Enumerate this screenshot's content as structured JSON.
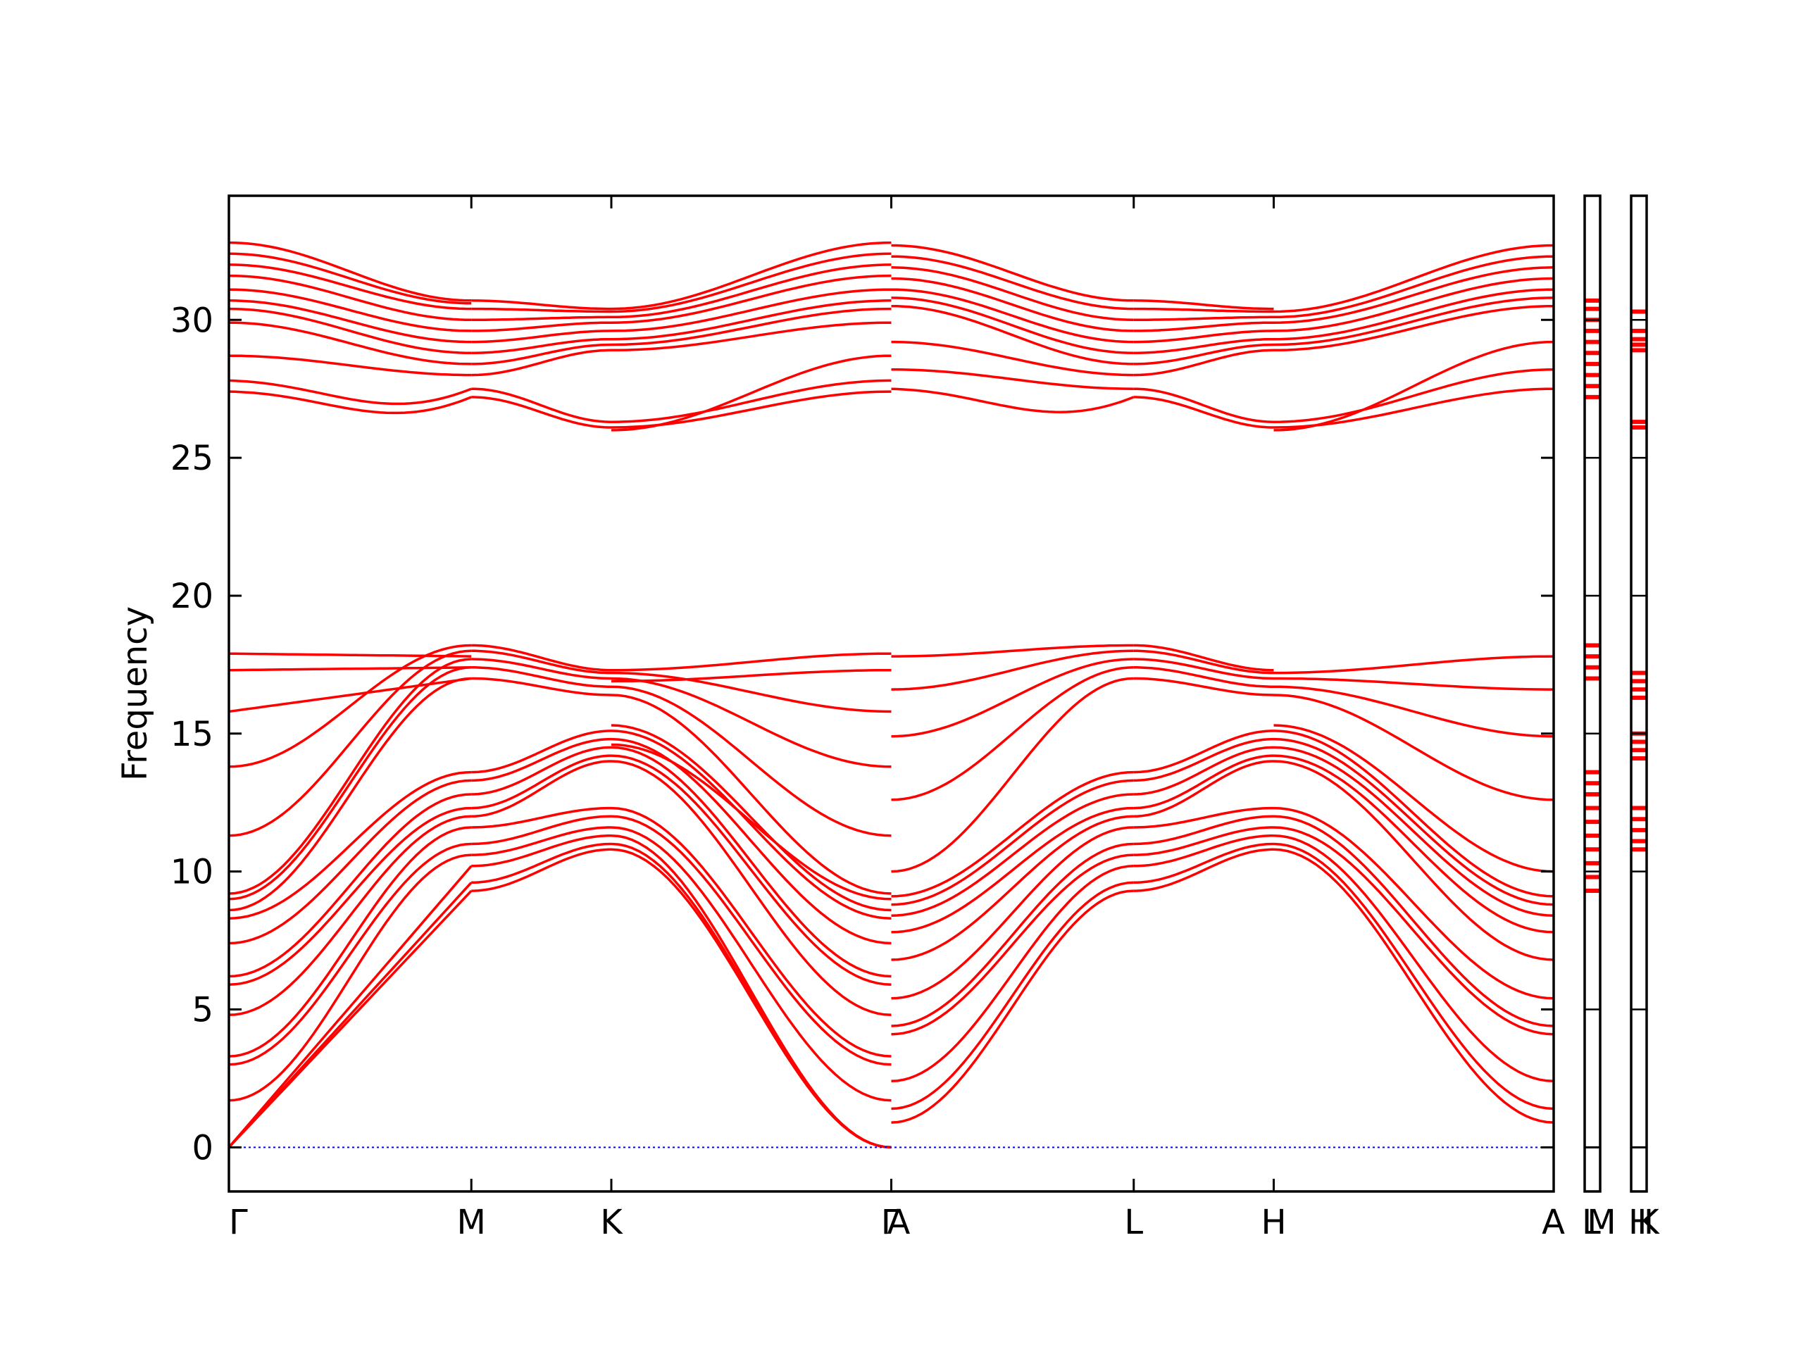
{
  "chart_data": {
    "type": "line",
    "ylabel": "Frequency",
    "xlabel": "",
    "title": "",
    "ylim": [
      -1.6,
      34.5
    ],
    "yticks": [
      0,
      5,
      10,
      15,
      20,
      25,
      30
    ],
    "grid": false,
    "legend": "none",
    "colors": {
      "bands": "#ff0000",
      "zero_line": "#0000ff",
      "axes": "#000000"
    },
    "segments": [
      {
        "from": "Γ",
        "to": "M",
        "length": 0.5
      },
      {
        "from": "M",
        "to": "K",
        "length": 0.2887
      },
      {
        "from": "K",
        "to": "Γ",
        "length": 0.5774
      },
      {
        "from": "A",
        "to": "L",
        "length": 0.5
      },
      {
        "from": "L",
        "to": "H",
        "length": 0.2887
      },
      {
        "from": "H",
        "to": "A",
        "length": 0.5774
      }
    ],
    "main_panel_labels": [
      "Γ",
      "M",
      "K",
      "Γ",
      "A",
      "L",
      "H",
      "A"
    ],
    "side_panels": [
      {
        "from": "L",
        "to": "M",
        "labels": [
          "L",
          "M"
        ],
        "band_values": [
          27.2,
          27.6,
          28.0,
          28.4,
          28.8,
          29.2,
          29.6,
          30.0,
          30.4,
          30.7,
          9.3,
          9.8,
          10.3,
          10.8,
          11.3,
          11.8,
          12.3,
          12.8,
          13.2,
          13.6,
          17.0,
          17.4,
          17.8,
          18.2
        ]
      },
      {
        "from": "H",
        "to": "K",
        "labels": [
          "H",
          "K"
        ],
        "band_values": [
          26.1,
          26.3,
          28.9,
          29.1,
          29.3,
          29.6,
          30.3,
          10.8,
          11.1,
          11.5,
          11.9,
          12.3,
          14.1,
          14.4,
          14.7,
          15.0,
          16.3,
          16.6,
          16.9,
          17.2
        ]
      }
    ],
    "series": [
      {
        "segment": 0,
        "start": 0.0,
        "end": 9.3,
        "shape": "linear"
      },
      {
        "segment": 0,
        "start": 0.0,
        "end": 9.6,
        "shape": "linear"
      },
      {
        "segment": 0,
        "start": 0.0,
        "end": 10.2,
        "shape": "linear"
      },
      {
        "segment": 0,
        "start": 1.7,
        "end": 10.6,
        "shape": "cos"
      },
      {
        "segment": 0,
        "start": 3.0,
        "end": 11.0,
        "shape": "cos"
      },
      {
        "segment": 0,
        "start": 3.3,
        "end": 11.6,
        "shape": "cos"
      },
      {
        "segment": 0,
        "start": 4.8,
        "end": 12.0,
        "shape": "cos"
      },
      {
        "segment": 0,
        "start": 5.9,
        "end": 12.3,
        "shape": "cos"
      },
      {
        "segment": 0,
        "start": 6.2,
        "end": 12.8,
        "shape": "cos"
      },
      {
        "segment": 0,
        "start": 7.4,
        "end": 13.3,
        "shape": "cos"
      },
      {
        "segment": 0,
        "start": 8.3,
        "end": 13.6,
        "shape": "cos"
      },
      {
        "segment": 0,
        "start": 8.6,
        "end": 17.0,
        "shape": "cos"
      },
      {
        "segment": 0,
        "start": 9.0,
        "end": 17.4,
        "shape": "cos"
      },
      {
        "segment": 0,
        "start": 9.2,
        "end": 17.7,
        "shape": "cos"
      },
      {
        "segment": 0,
        "start": 11.3,
        "end": 18.0,
        "shape": "cos"
      },
      {
        "segment": 0,
        "start": 13.8,
        "end": 18.2,
        "shape": "cos"
      },
      {
        "segment": 0,
        "start": 15.8,
        "end": 17.0,
        "shape": "flat"
      },
      {
        "segment": 0,
        "start": 17.3,
        "end": 17.4,
        "shape": "flat"
      },
      {
        "segment": 0,
        "start": 17.9,
        "end": 17.8,
        "shape": "flat"
      },
      {
        "segment": 0,
        "start": 27.4,
        "end": 27.2,
        "shape": "dip"
      },
      {
        "segment": 0,
        "start": 27.8,
        "end": 27.5,
        "shape": "dip"
      },
      {
        "segment": 0,
        "start": 28.7,
        "end": 28.0,
        "shape": "cos"
      },
      {
        "segment": 0,
        "start": 29.9,
        "end": 28.4,
        "shape": "cos"
      },
      {
        "segment": 0,
        "start": 30.4,
        "end": 28.8,
        "shape": "cos"
      },
      {
        "segment": 0,
        "start": 30.7,
        "end": 29.2,
        "shape": "cos"
      },
      {
        "segment": 0,
        "start": 31.1,
        "end": 29.6,
        "shape": "cos"
      },
      {
        "segment": 0,
        "start": 31.6,
        "end": 30.0,
        "shape": "cos"
      },
      {
        "segment": 0,
        "start": 32.0,
        "end": 30.4,
        "shape": "cos"
      },
      {
        "segment": 0,
        "start": 32.4,
        "end": 30.6,
        "shape": "cos"
      },
      {
        "segment": 0,
        "start": 32.8,
        "end": 30.7,
        "shape": "cos"
      },
      {
        "segment": 1,
        "start": 9.3,
        "end": 10.8,
        "shape": "cos"
      },
      {
        "segment": 1,
        "start": 9.6,
        "end": 11.0,
        "shape": "cos"
      },
      {
        "segment": 1,
        "start": 10.2,
        "end": 11.3,
        "shape": "cos"
      },
      {
        "segment": 1,
        "start": 10.6,
        "end": 11.6,
        "shape": "cos"
      },
      {
        "segment": 1,
        "start": 11.0,
        "end": 12.0,
        "shape": "cos"
      },
      {
        "segment": 1,
        "start": 11.6,
        "end": 12.3,
        "shape": "cos"
      },
      {
        "segment": 1,
        "start": 12.0,
        "end": 14.0,
        "shape": "cos"
      },
      {
        "segment": 1,
        "start": 12.3,
        "end": 14.2,
        "shape": "cos"
      },
      {
        "segment": 1,
        "start": 12.8,
        "end": 14.5,
        "shape": "cos"
      },
      {
        "segment": 1,
        "start": 13.3,
        "end": 14.8,
        "shape": "cos"
      },
      {
        "segment": 1,
        "start": 13.6,
        "end": 15.1,
        "shape": "cos"
      },
      {
        "segment": 1,
        "start": 17.0,
        "end": 16.4,
        "shape": "cos"
      },
      {
        "segment": 1,
        "start": 17.4,
        "end": 16.7,
        "shape": "cos"
      },
      {
        "segment": 1,
        "start": 17.7,
        "end": 17.0,
        "shape": "cos"
      },
      {
        "segment": 1,
        "start": 18.0,
        "end": 17.2,
        "shape": "cos"
      },
      {
        "segment": 1,
        "start": 18.2,
        "end": 17.3,
        "shape": "cos"
      },
      {
        "segment": 1,
        "start": 27.2,
        "end": 26.1,
        "shape": "cos"
      },
      {
        "segment": 1,
        "start": 27.5,
        "end": 26.3,
        "shape": "cos"
      },
      {
        "segment": 1,
        "start": 28.0,
        "end": 28.9,
        "shape": "cos"
      },
      {
        "segment": 1,
        "start": 28.4,
        "end": 29.1,
        "shape": "cos"
      },
      {
        "segment": 1,
        "start": 28.8,
        "end": 29.3,
        "shape": "cos"
      },
      {
        "segment": 1,
        "start": 29.2,
        "end": 29.6,
        "shape": "cos"
      },
      {
        "segment": 1,
        "start": 29.6,
        "end": 29.9,
        "shape": "cos"
      },
      {
        "segment": 1,
        "start": 30.0,
        "end": 30.1,
        "shape": "cos"
      },
      {
        "segment": 1,
        "start": 30.4,
        "end": 30.3,
        "shape": "cos"
      },
      {
        "segment": 1,
        "start": 30.7,
        "end": 30.4,
        "shape": "cos"
      },
      {
        "segment": 2,
        "start": 10.8,
        "end": 0.0,
        "shape": "cos"
      },
      {
        "segment": 2,
        "start": 11.0,
        "end": 0.0,
        "shape": "cos"
      },
      {
        "segment": 2,
        "start": 11.3,
        "end": 0.0,
        "shape": "cos"
      },
      {
        "segment": 2,
        "start": 11.6,
        "end": 1.7,
        "shape": "cos"
      },
      {
        "segment": 2,
        "start": 12.0,
        "end": 3.0,
        "shape": "cos"
      },
      {
        "segment": 2,
        "start": 12.3,
        "end": 3.3,
        "shape": "cos"
      },
      {
        "segment": 2,
        "start": 14.0,
        "end": 4.8,
        "shape": "cos"
      },
      {
        "segment": 2,
        "start": 14.2,
        "end": 5.9,
        "shape": "cos"
      },
      {
        "segment": 2,
        "start": 14.5,
        "end": 6.2,
        "shape": "cos"
      },
      {
        "segment": 2,
        "start": 14.8,
        "end": 7.4,
        "shape": "cos"
      },
      {
        "segment": 2,
        "start": 15.1,
        "end": 8.3,
        "shape": "cos"
      },
      {
        "segment": 2,
        "start": 15.3,
        "end": 8.6,
        "shape": "cos"
      },
      {
        "segment": 2,
        "start": 14.6,
        "end": 9.0,
        "shape": "cos"
      },
      {
        "segment": 2,
        "start": 16.4,
        "end": 9.2,
        "shape": "cos"
      },
      {
        "segment": 2,
        "start": 16.7,
        "end": 11.3,
        "shape": "cos"
      },
      {
        "segment": 2,
        "start": 17.0,
        "end": 13.8,
        "shape": "cos"
      },
      {
        "segment": 2,
        "start": 17.2,
        "end": 15.8,
        "shape": "cos"
      },
      {
        "segment": 2,
        "start": 16.9,
        "end": 17.3,
        "shape": "cos"
      },
      {
        "segment": 2,
        "start": 17.3,
        "end": 17.9,
        "shape": "cos"
      },
      {
        "segment": 2,
        "start": 26.1,
        "end": 27.4,
        "shape": "cos"
      },
      {
        "segment": 2,
        "start": 26.3,
        "end": 27.8,
        "shape": "cos"
      },
      {
        "segment": 2,
        "start": 26.0,
        "end": 28.7,
        "shape": "cos"
      },
      {
        "segment": 2,
        "start": 28.9,
        "end": 29.9,
        "shape": "cos"
      },
      {
        "segment": 2,
        "start": 29.1,
        "end": 30.4,
        "shape": "cos"
      },
      {
        "segment": 2,
        "start": 29.3,
        "end": 30.7,
        "shape": "cos"
      },
      {
        "segment": 2,
        "start": 29.6,
        "end": 31.1,
        "shape": "cos"
      },
      {
        "segment": 2,
        "start": 29.9,
        "end": 31.6,
        "shape": "cos"
      },
      {
        "segment": 2,
        "start": 30.1,
        "end": 32.0,
        "shape": "cos"
      },
      {
        "segment": 2,
        "start": 30.3,
        "end": 32.4,
        "shape": "cos"
      },
      {
        "segment": 2,
        "start": 30.4,
        "end": 32.8,
        "shape": "cos"
      },
      {
        "segment": 3,
        "start": 0.9,
        "end": 9.3,
        "shape": "cos"
      },
      {
        "segment": 3,
        "start": 1.4,
        "end": 9.6,
        "shape": "cos"
      },
      {
        "segment": 3,
        "start": 2.4,
        "end": 10.2,
        "shape": "cos"
      },
      {
        "segment": 3,
        "start": 4.1,
        "end": 10.6,
        "shape": "cos"
      },
      {
        "segment": 3,
        "start": 4.4,
        "end": 11.0,
        "shape": "cos"
      },
      {
        "segment": 3,
        "start": 5.4,
        "end": 11.6,
        "shape": "cos"
      },
      {
        "segment": 3,
        "start": 6.8,
        "end": 12.0,
        "shape": "cos"
      },
      {
        "segment": 3,
        "start": 7.8,
        "end": 12.3,
        "shape": "cos"
      },
      {
        "segment": 3,
        "start": 8.4,
        "end": 12.8,
        "shape": "cos"
      },
      {
        "segment": 3,
        "start": 8.8,
        "end": 13.3,
        "shape": "cos"
      },
      {
        "segment": 3,
        "start": 9.1,
        "end": 13.6,
        "shape": "cos"
      },
      {
        "segment": 3,
        "start": 10.0,
        "end": 17.0,
        "shape": "cos"
      },
      {
        "segment": 3,
        "start": 12.6,
        "end": 17.4,
        "shape": "cos"
      },
      {
        "segment": 3,
        "start": 14.9,
        "end": 17.7,
        "shape": "cos"
      },
      {
        "segment": 3,
        "start": 16.6,
        "end": 18.0,
        "shape": "cos"
      },
      {
        "segment": 3,
        "start": 17.8,
        "end": 18.2,
        "shape": "cos"
      },
      {
        "segment": 3,
        "start": 27.5,
        "end": 27.2,
        "shape": "dip"
      },
      {
        "segment": 3,
        "start": 28.2,
        "end": 27.5,
        "shape": "cos"
      },
      {
        "segment": 3,
        "start": 29.2,
        "end": 28.0,
        "shape": "cos"
      },
      {
        "segment": 3,
        "start": 30.5,
        "end": 28.4,
        "shape": "cos"
      },
      {
        "segment": 3,
        "start": 30.8,
        "end": 28.8,
        "shape": "cos"
      },
      {
        "segment": 3,
        "start": 31.1,
        "end": 29.2,
        "shape": "cos"
      },
      {
        "segment": 3,
        "start": 31.5,
        "end": 29.6,
        "shape": "cos"
      },
      {
        "segment": 3,
        "start": 31.9,
        "end": 30.0,
        "shape": "cos"
      },
      {
        "segment": 3,
        "start": 32.3,
        "end": 30.4,
        "shape": "cos"
      },
      {
        "segment": 3,
        "start": 32.7,
        "end": 30.7,
        "shape": "cos"
      },
      {
        "segment": 4,
        "start": 9.3,
        "end": 10.8,
        "shape": "cos"
      },
      {
        "segment": 4,
        "start": 9.6,
        "end": 11.0,
        "shape": "cos"
      },
      {
        "segment": 4,
        "start": 10.2,
        "end": 11.3,
        "shape": "cos"
      },
      {
        "segment": 4,
        "start": 10.6,
        "end": 11.6,
        "shape": "cos"
      },
      {
        "segment": 4,
        "start": 11.0,
        "end": 12.0,
        "shape": "cos"
      },
      {
        "segment": 4,
        "start": 11.6,
        "end": 12.3,
        "shape": "cos"
      },
      {
        "segment": 4,
        "start": 12.0,
        "end": 14.0,
        "shape": "cos"
      },
      {
        "segment": 4,
        "start": 12.3,
        "end": 14.2,
        "shape": "cos"
      },
      {
        "segment": 4,
        "start": 12.8,
        "end": 14.5,
        "shape": "cos"
      },
      {
        "segment": 4,
        "start": 13.3,
        "end": 14.8,
        "shape": "cos"
      },
      {
        "segment": 4,
        "start": 13.6,
        "end": 15.1,
        "shape": "cos"
      },
      {
        "segment": 4,
        "start": 17.0,
        "end": 16.4,
        "shape": "cos"
      },
      {
        "segment": 4,
        "start": 17.4,
        "end": 16.7,
        "shape": "cos"
      },
      {
        "segment": 4,
        "start": 17.7,
        "end": 17.0,
        "shape": "cos"
      },
      {
        "segment": 4,
        "start": 18.0,
        "end": 17.2,
        "shape": "cos"
      },
      {
        "segment": 4,
        "start": 18.2,
        "end": 17.3,
        "shape": "cos"
      },
      {
        "segment": 4,
        "start": 27.2,
        "end": 26.1,
        "shape": "cos"
      },
      {
        "segment": 4,
        "start": 27.5,
        "end": 26.3,
        "shape": "cos"
      },
      {
        "segment": 4,
        "start": 28.0,
        "end": 28.9,
        "shape": "cos"
      },
      {
        "segment": 4,
        "start": 28.4,
        "end": 29.1,
        "shape": "cos"
      },
      {
        "segment": 4,
        "start": 28.8,
        "end": 29.3,
        "shape": "cos"
      },
      {
        "segment": 4,
        "start": 29.2,
        "end": 29.6,
        "shape": "cos"
      },
      {
        "segment": 4,
        "start": 29.6,
        "end": 29.9,
        "shape": "cos"
      },
      {
        "segment": 4,
        "start": 30.0,
        "end": 30.1,
        "shape": "cos"
      },
      {
        "segment": 4,
        "start": 30.4,
        "end": 30.3,
        "shape": "cos"
      },
      {
        "segment": 4,
        "start": 30.7,
        "end": 30.4,
        "shape": "cos"
      },
      {
        "segment": 5,
        "start": 10.8,
        "end": 0.9,
        "shape": "cos"
      },
      {
        "segment": 5,
        "start": 11.0,
        "end": 1.4,
        "shape": "cos"
      },
      {
        "segment": 5,
        "start": 11.3,
        "end": 2.4,
        "shape": "cos"
      },
      {
        "segment": 5,
        "start": 11.6,
        "end": 4.1,
        "shape": "cos"
      },
      {
        "segment": 5,
        "start": 12.0,
        "end": 4.4,
        "shape": "cos"
      },
      {
        "segment": 5,
        "start": 12.3,
        "end": 5.4,
        "shape": "cos"
      },
      {
        "segment": 5,
        "start": 14.0,
        "end": 6.8,
        "shape": "cos"
      },
      {
        "segment": 5,
        "start": 14.2,
        "end": 7.8,
        "shape": "cos"
      },
      {
        "segment": 5,
        "start": 14.5,
        "end": 8.4,
        "shape": "cos"
      },
      {
        "segment": 5,
        "start": 14.8,
        "end": 8.8,
        "shape": "cos"
      },
      {
        "segment": 5,
        "start": 15.1,
        "end": 9.1,
        "shape": "cos"
      },
      {
        "segment": 5,
        "start": 15.3,
        "end": 10.0,
        "shape": "cos"
      },
      {
        "segment": 5,
        "start": 16.4,
        "end": 12.6,
        "shape": "cos"
      },
      {
        "segment": 5,
        "start": 16.7,
        "end": 14.9,
        "shape": "cos"
      },
      {
        "segment": 5,
        "start": 17.0,
        "end": 16.6,
        "shape": "cos"
      },
      {
        "segment": 5,
        "start": 17.2,
        "end": 17.8,
        "shape": "cos"
      },
      {
        "segment": 5,
        "start": 26.1,
        "end": 27.5,
        "shape": "cos"
      },
      {
        "segment": 5,
        "start": 26.3,
        "end": 28.2,
        "shape": "cos"
      },
      {
        "segment": 5,
        "start": 26.0,
        "end": 29.2,
        "shape": "cos"
      },
      {
        "segment": 5,
        "start": 28.9,
        "end": 30.5,
        "shape": "cos"
      },
      {
        "segment": 5,
        "start": 29.1,
        "end": 30.8,
        "shape": "cos"
      },
      {
        "segment": 5,
        "start": 29.3,
        "end": 31.1,
        "shape": "cos"
      },
      {
        "segment": 5,
        "start": 29.6,
        "end": 31.5,
        "shape": "cos"
      },
      {
        "segment": 5,
        "start": 29.9,
        "end": 31.9,
        "shape": "cos"
      },
      {
        "segment": 5,
        "start": 30.1,
        "end": 32.3,
        "shape": "cos"
      },
      {
        "segment": 5,
        "start": 30.3,
        "end": 32.7,
        "shape": "cos"
      }
    ]
  }
}
